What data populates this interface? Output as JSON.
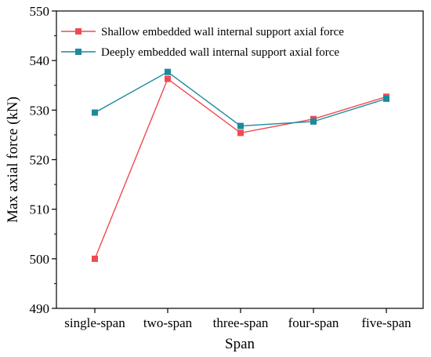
{
  "chart_data": {
    "type": "line",
    "title": "",
    "xlabel": "Span",
    "ylabel": "Max axial force (kN)",
    "categories": [
      "single-span",
      "two-span",
      "three-span",
      "four-span",
      "five-span"
    ],
    "ylim": [
      490,
      550
    ],
    "yticks": [
      "490",
      "500",
      "510",
      "520",
      "530",
      "540",
      "550"
    ],
    "grid": false,
    "legend_position": "top-right",
    "series": [
      {
        "name": "Shallow embedded wall internal support axial force",
        "color": "#f04a50",
        "marker": "square",
        "values": [
          500.0,
          536.3,
          525.4,
          528.2,
          532.7
        ]
      },
      {
        "name": "Deeply embedded wall internal support axial force",
        "color": "#1a8a9e",
        "marker": "square",
        "values": [
          529.5,
          537.7,
          526.8,
          527.7,
          532.3
        ]
      }
    ]
  }
}
